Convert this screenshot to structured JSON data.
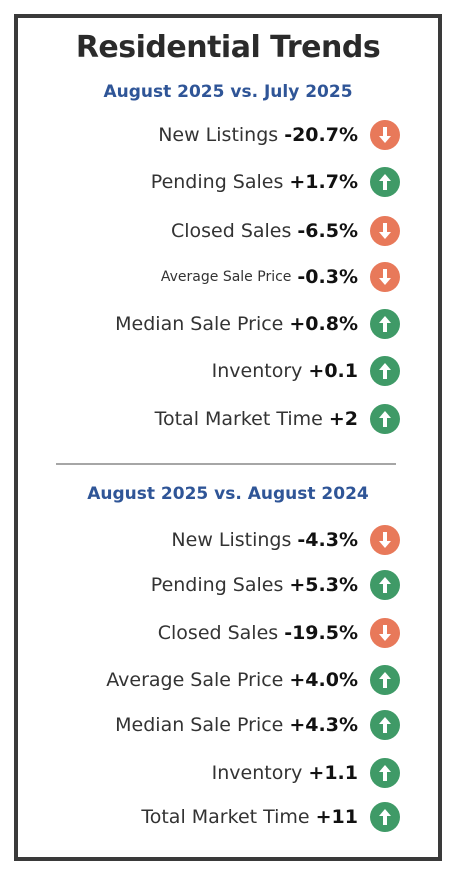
{
  "title": "Residential Trends",
  "colors": {
    "down": "#e8795a",
    "up": "#3f9a67",
    "heading": "#2f5597"
  },
  "sections": [
    {
      "heading": "August 2025 vs. July 2025",
      "rows": [
        {
          "label": "New Listings",
          "value": "-20.7%",
          "direction": "down",
          "icon": "arrow-down-icon"
        },
        {
          "label": "Pending Sales",
          "value": "+1.7%",
          "direction": "up",
          "icon": "arrow-up-icon"
        },
        {
          "label": "Closed Sales",
          "value": "-6.5%",
          "direction": "down",
          "icon": "arrow-down-icon"
        },
        {
          "label": "Average Sale Price",
          "value": "-0.3%",
          "direction": "down",
          "icon": "arrow-down-icon"
        },
        {
          "label": "Median Sale Price",
          "value": "+0.8%",
          "direction": "up",
          "icon": "arrow-up-icon"
        },
        {
          "label": "Inventory",
          "value": "+0.1",
          "direction": "up",
          "icon": "arrow-up-icon"
        },
        {
          "label": "Total Market Time",
          "value": "+2",
          "direction": "up",
          "icon": "arrow-up-icon"
        }
      ]
    },
    {
      "heading": "August 2025 vs. August 2024",
      "rows": [
        {
          "label": "New Listings",
          "value": "-4.3%",
          "direction": "down",
          "icon": "arrow-down-icon"
        },
        {
          "label": "Pending Sales",
          "value": "+5.3%",
          "direction": "up",
          "icon": "arrow-up-icon"
        },
        {
          "label": "Closed Sales",
          "value": "-19.5%",
          "direction": "down",
          "icon": "arrow-down-icon"
        },
        {
          "label": "Average Sale Price",
          "value": "+4.0%",
          "direction": "up",
          "icon": "arrow-up-icon"
        },
        {
          "label": "Median Sale Price",
          "value": "+4.3%",
          "direction": "up",
          "icon": "arrow-up-icon"
        },
        {
          "label": "Inventory",
          "value": "+1.1",
          "direction": "up",
          "icon": "arrow-up-icon"
        },
        {
          "label": "Total Market Time",
          "value": "+11",
          "direction": "up",
          "icon": "arrow-up-icon"
        }
      ]
    }
  ]
}
